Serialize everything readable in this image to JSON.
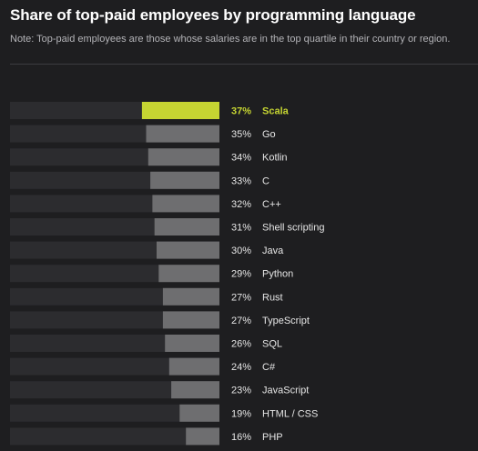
{
  "header": {
    "title": "Share of top-paid employees by programming language",
    "note": "Note: Top-paid employees are those whose salaries are in the top quartile in their country or region."
  },
  "colors": {
    "background": "#1e1e20",
    "track": "#2c2c2f",
    "bar": "#6e6e70",
    "highlight": "#c6d532",
    "label": "#e6e6e6"
  },
  "chart_data": {
    "type": "bar",
    "orientation": "horizontal",
    "title": "Share of top-paid employees by programming language",
    "subtitle": "Note: Top-paid employees are those whose salaries are in the top quartile in their country or region.",
    "categories": [
      "Scala",
      "Go",
      "Kotlin",
      "C",
      "C++",
      "Shell scripting",
      "Java",
      "Python",
      "Rust",
      "TypeScript",
      "SQL",
      "C#",
      "JavaScript",
      "HTML / CSS",
      "PHP"
    ],
    "values": [
      37,
      35,
      34,
      33,
      32,
      31,
      30,
      29,
      27,
      27,
      26,
      24,
      23,
      19,
      16
    ],
    "value_labels": [
      "37%",
      "35%",
      "34%",
      "33%",
      "32%",
      "31%",
      "30%",
      "29%",
      "27%",
      "27%",
      "26%",
      "24%",
      "23%",
      "19%",
      "16%"
    ],
    "highlighted": "Scala",
    "xlim": [
      0,
      100
    ],
    "grid": false,
    "legend": "none"
  }
}
